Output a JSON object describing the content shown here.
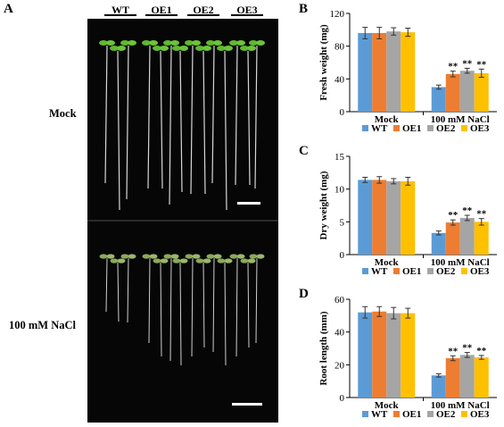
{
  "panel_a": {
    "letter": "A",
    "genotypes": [
      "WT",
      "OE1",
      "OE2",
      "OE3"
    ],
    "rows": [
      "Mock",
      "100 mM NaCl"
    ]
  },
  "colors": {
    "WT": "#5b9bd5",
    "OE1": "#ed7d31",
    "OE2": "#a5a5a5",
    "OE3": "#ffc000"
  },
  "chart_data": [
    {
      "letter": "B",
      "type": "bar",
      "ylabel": "Fresh weight (mg)",
      "categories": [
        "Mock",
        "100 mM NaCl"
      ],
      "ylim": [
        0,
        120
      ],
      "yticks": [
        0,
        40,
        80,
        120
      ],
      "series": [
        {
          "name": "WT",
          "values": [
            96,
            30
          ],
          "errors": [
            7,
            2.5
          ],
          "sig": [
            "",
            ""
          ]
        },
        {
          "name": "OE1",
          "values": [
            96,
            46
          ],
          "errors": [
            7,
            3.5
          ],
          "sig": [
            "",
            "**"
          ]
        },
        {
          "name": "OE2",
          "values": [
            98,
            50
          ],
          "errors": [
            4.5,
            3
          ],
          "sig": [
            "",
            "**"
          ]
        },
        {
          "name": "OE3",
          "values": [
            97,
            47
          ],
          "errors": [
            5,
            5
          ],
          "sig": [
            "",
            "**"
          ]
        }
      ]
    },
    {
      "letter": "C",
      "type": "bar",
      "ylabel": "Dry weight (mg)",
      "categories": [
        "Mock",
        "100 mM NaCl"
      ],
      "ylim": [
        0,
        15
      ],
      "yticks": [
        0,
        5,
        10,
        15
      ],
      "series": [
        {
          "name": "WT",
          "values": [
            11.4,
            3.3
          ],
          "errors": [
            0.4,
            0.3
          ],
          "sig": [
            "",
            ""
          ]
        },
        {
          "name": "OE1",
          "values": [
            11.4,
            4.9
          ],
          "errors": [
            0.5,
            0.4
          ],
          "sig": [
            "",
            "**"
          ]
        },
        {
          "name": "OE2",
          "values": [
            11.2,
            5.6
          ],
          "errors": [
            0.4,
            0.4
          ],
          "sig": [
            "",
            "**"
          ]
        },
        {
          "name": "OE3",
          "values": [
            11.2,
            5.0
          ],
          "errors": [
            0.6,
            0.5
          ],
          "sig": [
            "",
            "**"
          ]
        }
      ]
    },
    {
      "letter": "D",
      "type": "bar",
      "ylabel": "Root length (mm)",
      "categories": [
        "Mock",
        "100 mM NaCl"
      ],
      "ylim": [
        0,
        60
      ],
      "yticks": [
        0,
        20,
        40,
        60
      ],
      "series": [
        {
          "name": "WT",
          "values": [
            52,
            13.5
          ],
          "errors": [
            3.5,
            1
          ],
          "sig": [
            "",
            ""
          ]
        },
        {
          "name": "OE1",
          "values": [
            52.5,
            24
          ],
          "errors": [
            3,
            1.5
          ],
          "sig": [
            "",
            "**"
          ]
        },
        {
          "name": "OE2",
          "values": [
            51.5,
            26
          ],
          "errors": [
            3.5,
            1.5
          ],
          "sig": [
            "",
            "**"
          ]
        },
        {
          "name": "OE3",
          "values": [
            51.5,
            24.5
          ],
          "errors": [
            3,
            1.2
          ],
          "sig": [
            "",
            "**"
          ]
        }
      ]
    }
  ]
}
